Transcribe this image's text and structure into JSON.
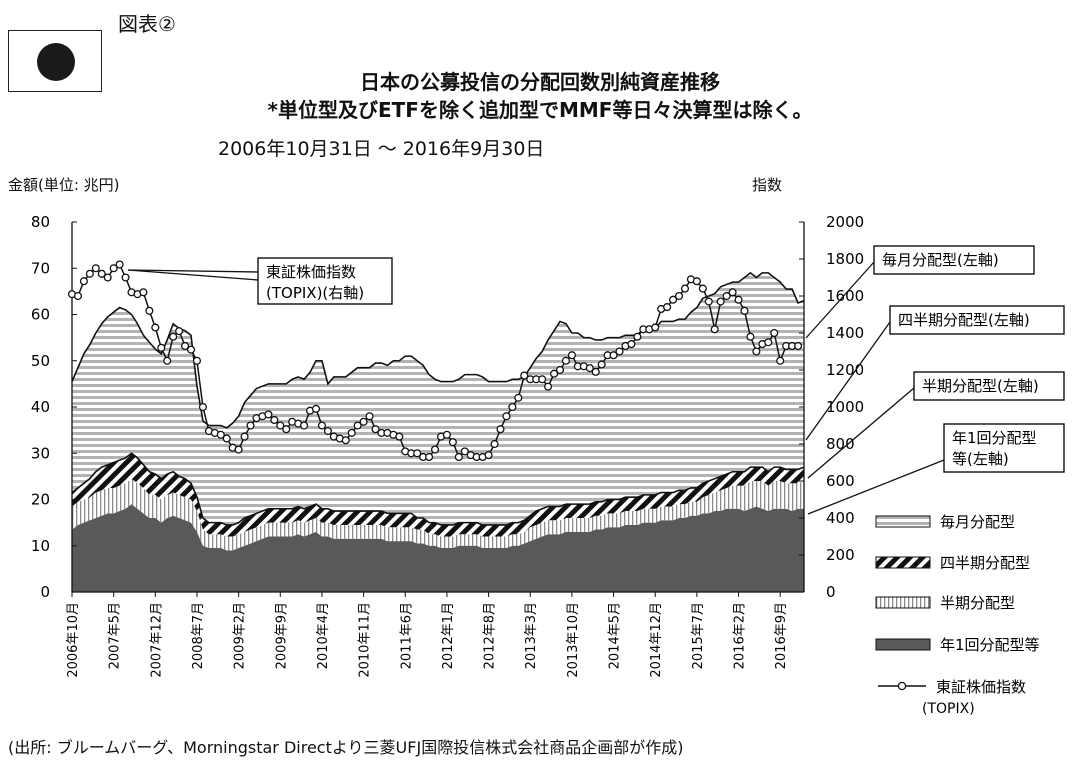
{
  "figure_label": "図表②",
  "flag_icon": "japan-flag-icon",
  "title_line1": "日本の公募投信の分配回数別純資産推移",
  "title_line2": "*単位型及びETFを除く追加型でMMF等日々決算型は除く。",
  "date_range": "2006年10月31日 〜 2016年9月30日",
  "source": "(出所: ブルームバーグ、Morningstar Directより三菱UFJ国際投信株式会社商品企画部が作成)",
  "chart_data": {
    "type": "area",
    "stacked": true,
    "ylabel_left": "金額(単位: 兆円)",
    "ylabel_right": "指数",
    "ylim_left": [
      0,
      80
    ],
    "ylim_right": [
      0,
      2000
    ],
    "yticks_left": [
      "0",
      "10",
      "20",
      "30",
      "40",
      "50",
      "60",
      "70",
      "80"
    ],
    "yticks_right": [
      "0",
      "200",
      "400",
      "600",
      "800",
      "1000",
      "1200",
      "1400",
      "1600",
      "1800",
      "2000"
    ],
    "x_tick_labels": [
      "2006年10月",
      "2007年5月",
      "2007年12月",
      "2008年7月",
      "2009年2月",
      "2009年9月",
      "2010年4月",
      "2010年11月",
      "2011年6月",
      "2012年1月",
      "2012年8月",
      "2013年3月",
      "2013年10月",
      "2014年5月",
      "2014年12月",
      "2015年7月",
      "2016年2月",
      "2016年9月"
    ],
    "x_tick_positions": [
      0,
      7,
      14,
      21,
      28,
      35,
      42,
      49,
      56,
      63,
      70,
      77,
      84,
      91,
      98,
      105,
      112,
      119
    ],
    "series": [
      {
        "name": "年1回分配型等",
        "axis": "left",
        "color": "#595959",
        "values": [
          13.5,
          14.5,
          15,
          15.5,
          16,
          16.5,
          17,
          17,
          17.5,
          18,
          19,
          18,
          17,
          16,
          16,
          15,
          16,
          16.5,
          16,
          15.5,
          15,
          13,
          10,
          9.5,
          9.5,
          9.5,
          9,
          9,
          9.5,
          10,
          10.5,
          11,
          11.5,
          12,
          12,
          12,
          12,
          12,
          12.5,
          12,
          12.5,
          13,
          12,
          12,
          11.5,
          11.5,
          11.5,
          11.5,
          11.5,
          11.5,
          11.5,
          11.5,
          11.5,
          11,
          11,
          11,
          11,
          11,
          10.5,
          10.5,
          10,
          10,
          9.5,
          9.5,
          9.5,
          10,
          10,
          10,
          10,
          9.5,
          9.5,
          9.5,
          9.5,
          9.5,
          10,
          10,
          10.5,
          11,
          11.5,
          12,
          12.5,
          12.5,
          12.5,
          13,
          13,
          13,
          13,
          13,
          13.5,
          13.5,
          14,
          14,
          14,
          14.5,
          14.5,
          14.5,
          15,
          15,
          15,
          15.5,
          15.5,
          15.5,
          16,
          16,
          16.5,
          16.5,
          17,
          17,
          17.5,
          17.5,
          18,
          18,
          18,
          17.5,
          18,
          18.5,
          18,
          17.5,
          18,
          18,
          18,
          17.5,
          18,
          18
        ]
      },
      {
        "name": "半期分配型",
        "axis": "left",
        "color": "#ffffff",
        "values": [
          5,
          5,
          5,
          5,
          5.5,
          5.5,
          5.5,
          5.5,
          5.5,
          5.5,
          5.5,
          5.5,
          5.5,
          5,
          5,
          5,
          5,
          5,
          5,
          5,
          5,
          4.5,
          3.5,
          3,
          3,
          3,
          3,
          3,
          3,
          3,
          3,
          3,
          3,
          3,
          3,
          3,
          3,
          3,
          3,
          3,
          3,
          3,
          3,
          3,
          3,
          3,
          3,
          3,
          3,
          3,
          3,
          3,
          3,
          3,
          3,
          3,
          3,
          3,
          3,
          3,
          2.5,
          2.5,
          2.5,
          2.5,
          2.5,
          2.5,
          2.5,
          2.5,
          2.5,
          2.5,
          2.5,
          2.5,
          2.5,
          2.5,
          2.5,
          2.5,
          2.5,
          3,
          3,
          3,
          3,
          3,
          3,
          3,
          3,
          3,
          3,
          3,
          3,
          3,
          3,
          3,
          3,
          3,
          3,
          3,
          3,
          3,
          3,
          3,
          3,
          3,
          3,
          3,
          3,
          3,
          3.5,
          4,
          4,
          4.5,
          4.5,
          5,
          5,
          5.5,
          6,
          5.5,
          6,
          5.5,
          6,
          6,
          5.5,
          6,
          5.5,
          6,
          6,
          6
        ]
      },
      {
        "name": "四半期分配型",
        "axis": "left",
        "color": "#222222",
        "values": [
          3,
          3,
          3.5,
          4,
          4.5,
          5,
          5,
          5.5,
          5.5,
          5.5,
          5.5,
          5.5,
          5,
          5,
          4.5,
          4.5,
          4.5,
          4.5,
          4,
          4,
          3.5,
          3,
          2.5,
          2.5,
          2.5,
          2.5,
          2.5,
          2.5,
          2.5,
          3,
          3,
          3,
          3,
          3,
          3,
          3,
          3,
          3,
          3,
          3,
          3,
          3,
          3,
          3,
          3,
          3,
          3,
          3,
          3,
          3,
          3,
          3,
          3,
          3,
          3,
          3,
          3,
          3,
          2.5,
          2.5,
          2.5,
          2.5,
          2.5,
          2.5,
          2.5,
          2.5,
          2.5,
          2.5,
          2.5,
          2.5,
          2.5,
          2.5,
          2.5,
          2.5,
          2.5,
          2.5,
          2.5,
          2.5,
          3,
          3,
          3,
          3,
          3,
          3,
          3,
          3,
          3,
          3,
          3,
          3,
          3,
          3,
          3,
          3,
          3,
          3,
          3,
          3,
          3,
          3,
          3,
          3,
          3,
          3,
          3,
          3,
          3,
          3,
          3,
          3,
          3,
          3,
          3,
          3,
          3,
          3,
          3,
          3,
          3,
          3,
          3,
          3,
          3,
          3,
          3,
          3,
          3
        ]
      },
      {
        "name": "毎月分配型",
        "axis": "left",
        "color": "#bfbfbf",
        "values": [
          24,
          26,
          28,
          29,
          30,
          31,
          32,
          32.5,
          33,
          32,
          30,
          29,
          28,
          28,
          27,
          27,
          29,
          32,
          32,
          32,
          32,
          24,
          21,
          21,
          21,
          21,
          21,
          22,
          23,
          25,
          26,
          27,
          27,
          27,
          27,
          27,
          27,
          28,
          28,
          28,
          29,
          31,
          32,
          27,
          29,
          29,
          29,
          30,
          31,
          31,
          31,
          32,
          32,
          32,
          33,
          33,
          34,
          34,
          34,
          33,
          32,
          31,
          31,
          31,
          31,
          31,
          32,
          32,
          32,
          32,
          31,
          31,
          31,
          31,
          31,
          31,
          31,
          32,
          33,
          34,
          36,
          38,
          40,
          39,
          37,
          37,
          36,
          36,
          35,
          35,
          35,
          35,
          35,
          35,
          35,
          35,
          36,
          36,
          36,
          37,
          37,
          37,
          37,
          37,
          38,
          39,
          40,
          40,
          40,
          41,
          41,
          41,
          41,
          42,
          42,
          41,
          42,
          43,
          41,
          40,
          39,
          39,
          36,
          36,
          36,
          36,
          35,
          34,
          34,
          33
        ]
      },
      {
        "name": "東証株価指数(TOPIX)",
        "axis": "right",
        "type": "line",
        "color": "#1a1a1a",
        "values": [
          1610,
          1600,
          1680,
          1720,
          1750,
          1720,
          1700,
          1750,
          1770,
          1700,
          1620,
          1610,
          1620,
          1520,
          1430,
          1320,
          1250,
          1380,
          1410,
          1330,
          1310,
          1250,
          1000,
          870,
          860,
          850,
          830,
          780,
          770,
          840,
          900,
          940,
          950,
          960,
          930,
          900,
          880,
          920,
          910,
          900,
          980,
          990,
          900,
          870,
          840,
          830,
          820,
          860,
          900,
          920,
          950,
          880,
          860,
          860,
          850,
          840,
          760,
          750,
          750,
          730,
          730,
          770,
          840,
          850,
          810,
          730,
          760,
          740,
          730,
          730,
          740,
          800,
          880,
          950,
          1000,
          1050,
          1170,
          1150,
          1150,
          1150,
          1110,
          1180,
          1200,
          1250,
          1280,
          1220,
          1220,
          1210,
          1190,
          1230,
          1280,
          1280,
          1300,
          1330,
          1340,
          1380,
          1420,
          1420,
          1430,
          1530,
          1540,
          1580,
          1600,
          1640,
          1690,
          1680,
          1640,
          1570,
          1420,
          1570,
          1600,
          1620,
          1580,
          1520,
          1380,
          1300,
          1340,
          1350,
          1400,
          1250,
          1330,
          1330,
          1330
        ]
      }
    ],
    "annotations": [
      "東証株価指数\n(TOPIX)(右軸)",
      "毎月分配型(左軸)",
      "四半期分配型(左軸)",
      "半期分配型(左軸)",
      "年1回分配型\n等(左軸)"
    ],
    "legend": {
      "placement": "right",
      "entries": [
        "毎月分配型",
        "四半期分配型",
        "半期分配型",
        "年1回分配型等",
        "東証株価指数\n(TOPIX)"
      ]
    }
  }
}
